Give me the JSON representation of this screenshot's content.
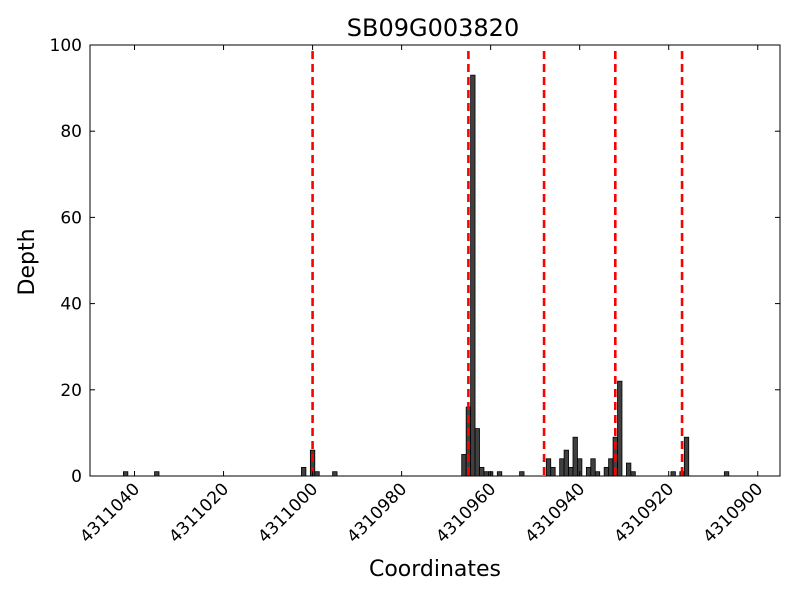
{
  "chart_data": {
    "type": "bar",
    "title": "SB09G003820",
    "xlabel": "Coordinates",
    "ylabel": "Depth",
    "x_reversed": true,
    "xlim": [
      4311050,
      4310895
    ],
    "ylim": [
      0,
      100
    ],
    "x_ticks": [
      {
        "value": 4311040,
        "label": "4311040"
      },
      {
        "value": 4311020,
        "label": "4311020"
      },
      {
        "value": 4311000,
        "label": "4311000"
      },
      {
        "value": 4310980,
        "label": "4310980"
      },
      {
        "value": 4310960,
        "label": "4310960"
      },
      {
        "value": 4310940,
        "label": "4310940"
      },
      {
        "value": 4310920,
        "label": "4310920"
      },
      {
        "value": 4310900,
        "label": "4310900"
      }
    ],
    "y_ticks": [
      {
        "value": 0,
        "label": "0"
      },
      {
        "value": 20,
        "label": "20"
      },
      {
        "value": 40,
        "label": "40"
      },
      {
        "value": 60,
        "label": "60"
      },
      {
        "value": 80,
        "label": "80"
      },
      {
        "value": 100,
        "label": "100"
      }
    ],
    "grid": false,
    "bar_color": "#404040",
    "bar_edge_color": "#000000",
    "bars": [
      {
        "x": 4311042,
        "depth": 1
      },
      {
        "x": 4311035,
        "depth": 1
      },
      {
        "x": 4311002,
        "depth": 2
      },
      {
        "x": 4311000,
        "depth": 6
      },
      {
        "x": 4310999,
        "depth": 1
      },
      {
        "x": 4310995,
        "depth": 1
      },
      {
        "x": 4310966,
        "depth": 5
      },
      {
        "x": 4310965,
        "depth": 16
      },
      {
        "x": 4310964,
        "depth": 93
      },
      {
        "x": 4310963,
        "depth": 11
      },
      {
        "x": 4310962,
        "depth": 2
      },
      {
        "x": 4310961,
        "depth": 1
      },
      {
        "x": 4310960,
        "depth": 1
      },
      {
        "x": 4310958,
        "depth": 1
      },
      {
        "x": 4310953,
        "depth": 1
      },
      {
        "x": 4310947,
        "depth": 4
      },
      {
        "x": 4310946,
        "depth": 2
      },
      {
        "x": 4310944,
        "depth": 4
      },
      {
        "x": 4310943,
        "depth": 6
      },
      {
        "x": 4310942,
        "depth": 2
      },
      {
        "x": 4310941,
        "depth": 9
      },
      {
        "x": 4310940,
        "depth": 4
      },
      {
        "x": 4310938,
        "depth": 2
      },
      {
        "x": 4310937,
        "depth": 4
      },
      {
        "x": 4310936,
        "depth": 1
      },
      {
        "x": 4310934,
        "depth": 2
      },
      {
        "x": 4310933,
        "depth": 4
      },
      {
        "x": 4310932,
        "depth": 9
      },
      {
        "x": 4310931,
        "depth": 22
      },
      {
        "x": 4310929,
        "depth": 3
      },
      {
        "x": 4310928,
        "depth": 1
      },
      {
        "x": 4310919,
        "depth": 1
      },
      {
        "x": 4310917,
        "depth": 1
      },
      {
        "x": 4310916,
        "depth": 9
      },
      {
        "x": 4310907,
        "depth": 1
      }
    ],
    "vlines": {
      "color": "#ff0000",
      "style": "dashed",
      "x": [
        4311000,
        4310965,
        4310948,
        4310932,
        4310917
      ]
    }
  }
}
